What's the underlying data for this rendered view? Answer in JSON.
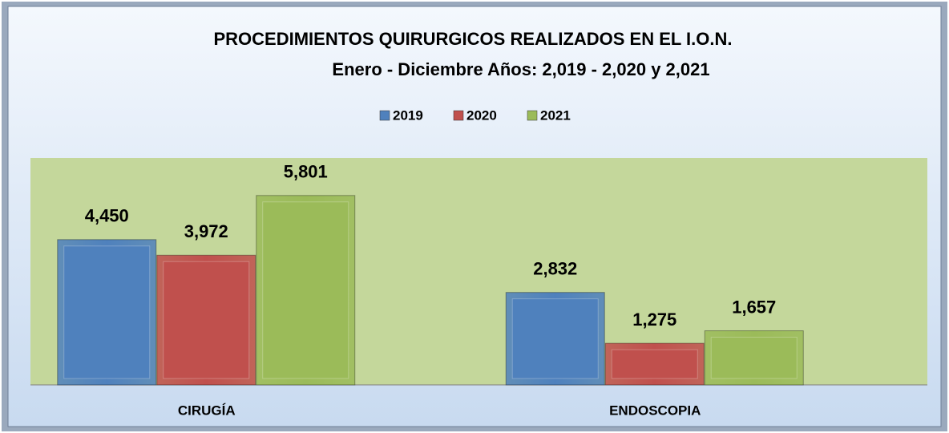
{
  "chart_data": {
    "type": "bar",
    "title": "PROCEDIMIENTOS QUIRURGICOS REALIZADOS EN EL I.O.N.",
    "subtitle": "Enero - Diciembre Años: 2,019 - 2,020 y 2,021",
    "categories": [
      "CIRUGÍA",
      "ENDOSCOPIA"
    ],
    "series": [
      {
        "name": "2019",
        "color": "#4f81bd",
        "values": [
          4450,
          2832
        ],
        "value_labels": [
          "4,450",
          "2,832"
        ]
      },
      {
        "name": "2020",
        "color": "#c0504d",
        "values": [
          3972,
          1275
        ],
        "value_labels": [
          "3,972",
          "1,275"
        ]
      },
      {
        "name": "2021",
        "color": "#9bbb59",
        "values": [
          5801,
          1657
        ],
        "value_labels": [
          "5,801",
          "1,657"
        ]
      }
    ],
    "ylim": [
      0,
      6950
    ],
    "legend": "top"
  }
}
